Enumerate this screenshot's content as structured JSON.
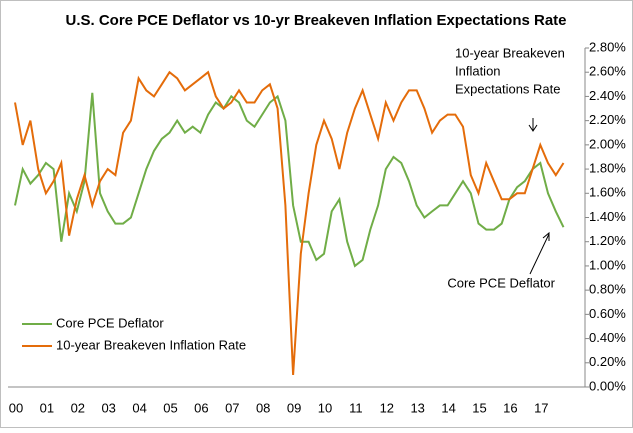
{
  "chart_data": {
    "type": "line",
    "title": "U.S. Core PCE Deflator vs 10-yr Breakeven Inflation Expectations Rate",
    "categories": [
      "00",
      null,
      null,
      null,
      "01",
      null,
      null,
      null,
      "02",
      null,
      null,
      null,
      "03",
      null,
      null,
      null,
      "04",
      null,
      null,
      null,
      "05",
      null,
      null,
      null,
      "06",
      null,
      null,
      null,
      "07",
      null,
      null,
      null,
      "08",
      null,
      null,
      null,
      "09",
      null,
      null,
      null,
      "10",
      null,
      null,
      null,
      "11",
      null,
      null,
      null,
      "12",
      null,
      null,
      null,
      "13",
      null,
      null,
      null,
      "14",
      null,
      null,
      null,
      "15",
      null,
      null,
      null,
      "16",
      null,
      null,
      null,
      "17",
      null,
      null,
      null
    ],
    "series": [
      {
        "name": "Core PCE Deflator",
        "color": "#70ad47",
        "values": [
          1.5,
          1.8,
          1.68,
          1.75,
          1.85,
          1.8,
          1.2,
          1.6,
          1.45,
          1.7,
          2.43,
          1.6,
          1.45,
          1.35,
          1.35,
          1.4,
          1.6,
          1.8,
          1.95,
          2.05,
          2.1,
          2.2,
          2.1,
          2.15,
          2.1,
          2.25,
          2.35,
          2.3,
          2.4,
          2.35,
          2.2,
          2.15,
          2.25,
          2.35,
          2.4,
          2.2,
          1.5,
          1.2,
          1.2,
          1.05,
          1.1,
          1.45,
          1.55,
          1.2,
          1.0,
          1.05,
          1.3,
          1.5,
          1.8,
          1.9,
          1.85,
          1.7,
          1.5,
          1.4,
          1.45,
          1.5,
          1.5,
          1.6,
          1.7,
          1.6,
          1.35,
          1.3,
          1.3,
          1.35,
          1.55,
          1.65,
          1.7,
          1.8,
          1.85,
          1.6,
          1.45,
          1.32
        ]
      },
      {
        "name": "10-year Breakeven Inflation Rate",
        "color": "#e46c0a",
        "values": [
          2.35,
          2.0,
          2.2,
          1.8,
          1.6,
          1.7,
          1.85,
          1.25,
          1.55,
          1.75,
          1.5,
          1.7,
          1.8,
          1.75,
          2.1,
          2.2,
          2.55,
          2.45,
          2.4,
          2.5,
          2.6,
          2.55,
          2.45,
          2.5,
          2.55,
          2.6,
          2.4,
          2.3,
          2.35,
          2.45,
          2.35,
          2.35,
          2.45,
          2.5,
          2.3,
          1.5,
          0.1,
          1.1,
          1.6,
          2.0,
          2.2,
          2.05,
          1.8,
          2.1,
          2.3,
          2.45,
          2.25,
          2.05,
          2.35,
          2.2,
          2.35,
          2.45,
          2.45,
          2.3,
          2.1,
          2.2,
          2.25,
          2.25,
          2.15,
          1.75,
          1.6,
          1.85,
          1.7,
          1.55,
          1.55,
          1.6,
          1.6,
          1.8,
          2.0,
          1.85,
          1.75,
          1.85
        ]
      }
    ],
    "ylim": [
      0,
      2.8
    ],
    "yticks": [
      {
        "value": 0,
        "label": "0.00%"
      },
      {
        "value": 0.2,
        "label": "0.20%"
      },
      {
        "value": 0.4,
        "label": "0.40%"
      },
      {
        "value": 0.6,
        "label": "0.60%"
      },
      {
        "value": 0.8,
        "label": "0.80%"
      },
      {
        "value": 1,
        "label": "1.00%"
      },
      {
        "value": 1.2,
        "label": "1.20%"
      },
      {
        "value": 1.4,
        "label": "1.40%"
      },
      {
        "value": 1.6,
        "label": "1.60%"
      },
      {
        "value": 1.8,
        "label": "1.80%"
      },
      {
        "value": 2,
        "label": "2.00%"
      },
      {
        "value": 2.2,
        "label": "2.20%"
      },
      {
        "value": 2.4,
        "label": "2.40%"
      },
      {
        "value": 2.6,
        "label": "2.60%"
      },
      {
        "value": 2.8,
        "label": "2.80%"
      }
    ],
    "legend": "lower left",
    "annotations": [
      [
        "10-year Breakeven",
        "Inflation",
        "Expectations Rate"
      ],
      [
        "Core PCE Deflator"
      ]
    ]
  }
}
